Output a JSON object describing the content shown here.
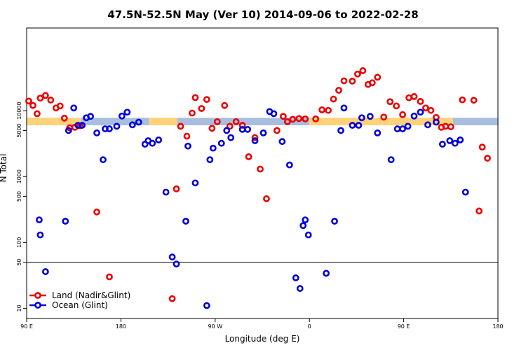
{
  "chart_data": {
    "type": "scatter",
    "title": "47.5N-52.5N May (Ver 10)   2014-09-06 to 2022-02-28",
    "xlabel": "Longitude (deg E)",
    "ylabel": "N Total",
    "x_axis": {
      "range_deg_east": [
        90,
        450
      ],
      "ticks": [
        {
          "value": 90,
          "label": "90 E"
        },
        {
          "value": 180,
          "label": "180"
        },
        {
          "value": 270,
          "label": "90 W"
        },
        {
          "value": 360,
          "label": "0"
        },
        {
          "value": 450,
          "label": "90 E"
        },
        {
          "value": 540,
          "label": "180"
        }
      ],
      "range_with_wrap": [
        90,
        540
      ]
    },
    "y_axis": {
      "scale": "log",
      "range": [
        7,
        180000
      ],
      "ticks": [
        {
          "value": 10,
          "label": "10"
        },
        {
          "value": 50,
          "label": "50"
        },
        {
          "value": 100,
          "label": "100"
        },
        {
          "value": 500,
          "label": "500"
        },
        {
          "value": 1000,
          "label": "1000"
        },
        {
          "value": 5000,
          "label": "5000"
        },
        {
          "value": 10000,
          "label": "10000"
        }
      ],
      "reference_line": 50
    },
    "bands": [
      {
        "name": "Land",
        "color": "#FFD27A",
        "y_range": [
          6000,
          7800
        ],
        "x_ranges": [
          [
            90,
            142
          ],
          [
            142,
            207
          ],
          [
            207,
            234
          ],
          [
            234,
            298
          ],
          [
            298,
            360
          ],
          [
            360,
            430
          ],
          [
            430,
            497
          ],
          [
            497,
            540
          ]
        ],
        "land": [
          true,
          false,
          true,
          false,
          false,
          true,
          true,
          false
        ]
      }
    ],
    "series": [
      {
        "name": "Land (Nadir&Glint)",
        "color": "#EE0000",
        "x": [
          92,
          96,
          100,
          103,
          108,
          113,
          118,
          122,
          126,
          131,
          136,
          141,
          157,
          169,
          229,
          233,
          237,
          243,
          248,
          251,
          257,
          262,
          267,
          272,
          279,
          284,
          290,
          296,
          302,
          308,
          313,
          319,
          329,
          335,
          339,
          344,
          350,
          356,
          366,
          372,
          378,
          383,
          388,
          393,
          401,
          406,
          411,
          416,
          420,
          425,
          431,
          437,
          443,
          449,
          455,
          460,
          466,
          471,
          476,
          481,
          486,
          490,
          495,
          506,
          517,
          522,
          525,
          530
        ],
        "y": [
          14000,
          12000,
          9000,
          15500,
          17000,
          14500,
          11000,
          11800,
          7700,
          5500,
          5600,
          5900,
          290,
          30,
          14,
          650,
          5800,
          4100,
          9200,
          15800,
          10800,
          14800,
          5400,
          6800,
          12000,
          5800,
          6800,
          6000,
          2000,
          3900,
          1300,
          460,
          5000,
          8200,
          6800,
          7400,
          7600,
          7500,
          7500,
          10300,
          10100,
          15000,
          20400,
          28400,
          28100,
          36000,
          40500,
          25000,
          26500,
          32200,
          8000,
          13700,
          11800,
          8700,
          15700,
          16400,
          13800,
          11000,
          10100,
          7900,
          5600,
          5800,
          5700,
          14600,
          14400,
          300,
          2800,
          1900
        ]
      },
      {
        "name": "Ocean (Glint)",
        "color": "#0000DD",
        "x": [
          102,
          103,
          108,
          127,
          130,
          135,
          139,
          143,
          147,
          151,
          157,
          163,
          165,
          169,
          176,
          181,
          186,
          191,
          197,
          203,
          206,
          210,
          216,
          223,
          229,
          233,
          242,
          244,
          251,
          262,
          265,
          268,
          276,
          281,
          285,
          296,
          301,
          308,
          316,
          322,
          326,
          334,
          341,
          347,
          351,
          354,
          356,
          359,
          376,
          384,
          390,
          393,
          401,
          407,
          410,
          418,
          425,
          438,
          444,
          449,
          454,
          460,
          466,
          473,
          481,
          487,
          494,
          499,
          504,
          509
        ],
        "y": [
          220,
          130,
          36,
          210,
          5000,
          11000,
          6000,
          6000,
          7800,
          8200,
          4600,
          1800,
          5300,
          5300,
          5800,
          8300,
          9500,
          6100,
          6700,
          3100,
          3500,
          3200,
          3600,
          580,
          60,
          47,
          210,
          2900,
          800,
          11,
          1800,
          2700,
          3200,
          5000,
          3900,
          5200,
          5200,
          3500,
          4600,
          9700,
          9000,
          3400,
          1500,
          29,
          20,
          180,
          220,
          130,
          34,
          210,
          5000,
          11000,
          6000,
          6000,
          7800,
          8200,
          4600,
          1800,
          5300,
          5300,
          5800,
          8300,
          9500,
          6100,
          6700,
          3100,
          3500,
          3200,
          3600,
          580
        ]
      }
    ],
    "legend": {
      "placement": "bottom-left"
    }
  }
}
